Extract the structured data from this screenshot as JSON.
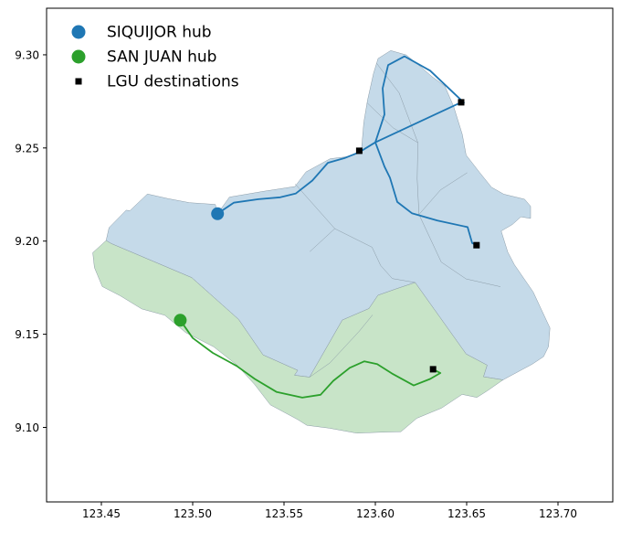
{
  "chart_data": {
    "type": "map",
    "xlim": [
      123.42,
      123.73
    ],
    "ylim": [
      9.06,
      9.325
    ],
    "x_ticks": [
      123.45,
      123.5,
      123.55,
      123.6,
      123.65,
      123.7
    ],
    "x_tick_labels": [
      "123.45",
      "123.50",
      "123.55",
      "123.60",
      "123.65",
      "123.70"
    ],
    "y_ticks": [
      9.1,
      9.15,
      9.2,
      9.25,
      9.3
    ],
    "y_tick_labels": [
      "9.10",
      "9.15",
      "9.20",
      "9.25",
      "9.30"
    ],
    "grid": false,
    "legend_position": "top-left",
    "legend": [
      {
        "label": "SIQUIJOR hub",
        "marker": "circle",
        "color": "#1f77b4"
      },
      {
        "label": "SAN JUAN hub",
        "marker": "circle",
        "color": "#2ca02c"
      },
      {
        "label": "LGU destinations",
        "marker": "square",
        "color": "#000000"
      }
    ],
    "regions": [
      {
        "group": "siquijor",
        "fill": "#c5dae9",
        "points": [
          [
            123.5136,
            9.2147
          ],
          [
            123.5124,
            9.2197
          ],
          [
            123.4983,
            9.2206
          ],
          [
            123.4866,
            9.2228
          ],
          [
            123.4752,
            9.2253
          ],
          [
            123.4656,
            9.2163
          ],
          [
            123.4636,
            9.2166
          ],
          [
            123.4542,
            9.2072
          ],
          [
            123.4526,
            9.2003
          ],
          [
            123.4554,
            9.1987
          ],
          [
            123.4995,
            9.1804
          ],
          [
            123.5251,
            9.158
          ],
          [
            123.5385,
            9.1389
          ],
          [
            123.5575,
            9.1306
          ],
          [
            123.5557,
            9.128
          ],
          [
            123.564,
            9.127
          ],
          [
            123.5819,
            9.1576
          ],
          [
            123.5965,
            9.1638
          ],
          [
            123.6014,
            9.1709
          ],
          [
            123.6109,
            9.1742
          ],
          [
            123.6218,
            9.1778
          ],
          [
            123.6497,
            9.1394
          ],
          [
            123.6612,
            9.1334
          ],
          [
            123.6592,
            9.1272
          ],
          [
            123.6699,
            9.1255
          ],
          [
            123.686,
            9.134
          ],
          [
            123.6921,
            9.138
          ],
          [
            123.6948,
            9.1434
          ],
          [
            123.6956,
            9.1534
          ],
          [
            123.6864,
            9.1727
          ],
          [
            123.6761,
            9.1874
          ],
          [
            123.6725,
            9.1941
          ],
          [
            123.6689,
            9.2054
          ],
          [
            123.675,
            9.2089
          ],
          [
            123.6797,
            9.213
          ],
          [
            123.685,
            9.2122
          ],
          [
            123.685,
            9.2187
          ],
          [
            123.6817,
            9.2225
          ],
          [
            123.6703,
            9.2252
          ],
          [
            123.6636,
            9.2289
          ],
          [
            123.6572,
            9.2367
          ],
          [
            123.6497,
            9.2462
          ],
          [
            123.6476,
            9.2573
          ],
          [
            123.6428,
            9.2725
          ],
          [
            123.638,
            9.2833
          ],
          [
            123.631,
            9.2883
          ],
          [
            123.6241,
            9.2942
          ],
          [
            123.6169,
            9.2999
          ],
          [
            123.6084,
            9.3023
          ],
          [
            123.6015,
            9.298
          ],
          [
            123.599,
            9.29
          ],
          [
            123.5957,
            9.2755
          ],
          [
            123.5937,
            9.2638
          ],
          [
            123.5923,
            9.2478
          ],
          [
            123.5863,
            9.2455
          ],
          [
            123.5753,
            9.2442
          ],
          [
            123.562,
            9.2371
          ],
          [
            123.556,
            9.2293
          ],
          [
            123.5387,
            9.2267
          ],
          [
            123.5201,
            9.2236
          ]
        ]
      },
      {
        "group": "san_juan",
        "fill": "#c8e4c8",
        "points": [
          [
            123.4554,
            9.1987
          ],
          [
            123.4526,
            9.2003
          ],
          [
            123.4453,
            9.1938
          ],
          [
            123.4462,
            9.1858
          ],
          [
            123.4505,
            9.1756
          ],
          [
            123.4604,
            9.1706
          ],
          [
            123.4721,
            9.1636
          ],
          [
            123.4847,
            9.1602
          ],
          [
            123.4962,
            9.1509
          ],
          [
            123.5115,
            9.1433
          ],
          [
            123.5244,
            9.1333
          ],
          [
            123.5341,
            9.1228
          ],
          [
            123.5425,
            9.1121
          ],
          [
            123.5575,
            9.1042
          ],
          [
            123.5625,
            9.1011
          ],
          [
            123.5747,
            9.0996
          ],
          [
            123.5899,
            9.0969
          ],
          [
            123.6025,
            9.0974
          ],
          [
            123.614,
            9.0977
          ],
          [
            123.6227,
            9.1049
          ],
          [
            123.6363,
            9.1104
          ],
          [
            123.6475,
            9.1177
          ],
          [
            123.6556,
            9.1161
          ],
          [
            123.6612,
            9.1196
          ],
          [
            123.6699,
            9.1255
          ],
          [
            123.6592,
            9.1272
          ],
          [
            123.6612,
            9.1334
          ],
          [
            123.6497,
            9.1394
          ],
          [
            123.6218,
            9.1778
          ],
          [
            123.6109,
            9.1742
          ],
          [
            123.6014,
            9.1709
          ],
          [
            123.5965,
            9.1638
          ],
          [
            123.5819,
            9.1576
          ],
          [
            123.564,
            9.127
          ],
          [
            123.5557,
            9.128
          ],
          [
            123.5575,
            9.1306
          ],
          [
            123.5385,
            9.1389
          ],
          [
            123.5251,
            9.158
          ],
          [
            123.4995,
            9.1804
          ]
        ]
      }
    ],
    "boundaries": [
      [
        [
          123.5561,
          9.2307
        ],
        [
          123.5778,
          9.2067
        ],
        [
          123.5982,
          9.1967
        ],
        [
          123.6029,
          9.1869
        ],
        [
          123.6093,
          9.1799
        ],
        [
          123.6218,
          9.1778
        ]
      ],
      [
        [
          123.5955,
          9.2742
        ],
        [
          123.6097,
          9.2608
        ],
        [
          123.6233,
          9.2528
        ],
        [
          123.6229,
          9.2335
        ],
        [
          123.6239,
          9.2143
        ],
        [
          123.6361,
          9.1887
        ],
        [
          123.6497,
          9.1797
        ],
        [
          123.6685,
          9.1755
        ]
      ],
      [
        [
          123.6008,
          9.2953
        ],
        [
          123.613,
          9.2796
        ],
        [
          123.6233,
          9.2528
        ]
      ],
      [
        [
          123.6239,
          9.2143
        ],
        [
          123.6357,
          9.2275
        ],
        [
          123.6503,
          9.2367
        ]
      ],
      [
        [
          123.5778,
          9.2067
        ],
        [
          123.5641,
          9.1943
        ]
      ],
      [
        [
          123.5985,
          9.1604
        ],
        [
          123.5911,
          9.1515
        ],
        [
          123.5751,
          9.1346
        ],
        [
          123.564,
          9.127
        ]
      ]
    ],
    "routes": [
      {
        "hub": "SIQUIJOR hub",
        "color": "#1f77b4",
        "points": [
          [
            123.5136,
            9.2147
          ],
          [
            123.5225,
            9.2206
          ],
          [
            123.536,
            9.2225
          ],
          [
            123.548,
            9.2235
          ],
          [
            123.5565,
            9.2256
          ],
          [
            123.5655,
            9.2325
          ],
          [
            123.574,
            9.242
          ],
          [
            123.583,
            9.2445
          ],
          [
            123.591,
            9.2476
          ],
          [
            123.6,
            9.253
          ],
          [
            123.605,
            9.268
          ],
          [
            123.604,
            9.282
          ],
          [
            123.607,
            9.2945
          ],
          [
            123.616,
            9.2992
          ],
          [
            123.63,
            9.2915
          ],
          [
            123.6485,
            9.2743
          ],
          [
            123.647,
            9.2745
          ],
          [
            123.6,
            9.253
          ],
          [
            123.605,
            9.24
          ],
          [
            123.608,
            9.234
          ],
          [
            123.612,
            9.221
          ],
          [
            123.62,
            9.215
          ],
          [
            123.634,
            9.211
          ],
          [
            123.6505,
            9.2075
          ],
          [
            123.653,
            9.199
          ],
          [
            123.6554,
            9.1978
          ]
        ]
      },
      {
        "hub": "SAN JUAN hub",
        "color": "#2ca02c",
        "points": [
          [
            123.4932,
            9.1575
          ],
          [
            123.5,
            9.148
          ],
          [
            123.511,
            9.14
          ],
          [
            123.524,
            9.133
          ],
          [
            123.534,
            9.126
          ],
          [
            123.546,
            9.119
          ],
          [
            123.56,
            9.116
          ],
          [
            123.57,
            9.1175
          ],
          [
            123.577,
            9.125
          ],
          [
            123.586,
            9.132
          ],
          [
            123.594,
            9.1355
          ],
          [
            123.601,
            9.134
          ],
          [
            123.609,
            9.129
          ],
          [
            123.621,
            9.1225
          ],
          [
            123.63,
            9.126
          ],
          [
            123.6356,
            9.1292
          ],
          [
            123.6316,
            9.1312
          ]
        ]
      }
    ],
    "hubs": [
      {
        "name": "SIQUIJOR hub",
        "x": 123.5136,
        "y": 9.2147,
        "color": "#1f77b4"
      },
      {
        "name": "SAN JUAN hub",
        "x": 123.4932,
        "y": 9.1575,
        "color": "#2ca02c"
      }
    ],
    "lgu_destinations": [
      {
        "x": 123.647,
        "y": 9.2745
      },
      {
        "x": 123.5912,
        "y": 9.2485
      },
      {
        "x": 123.6554,
        "y": 9.1978
      },
      {
        "x": 123.6316,
        "y": 9.1312
      }
    ]
  }
}
